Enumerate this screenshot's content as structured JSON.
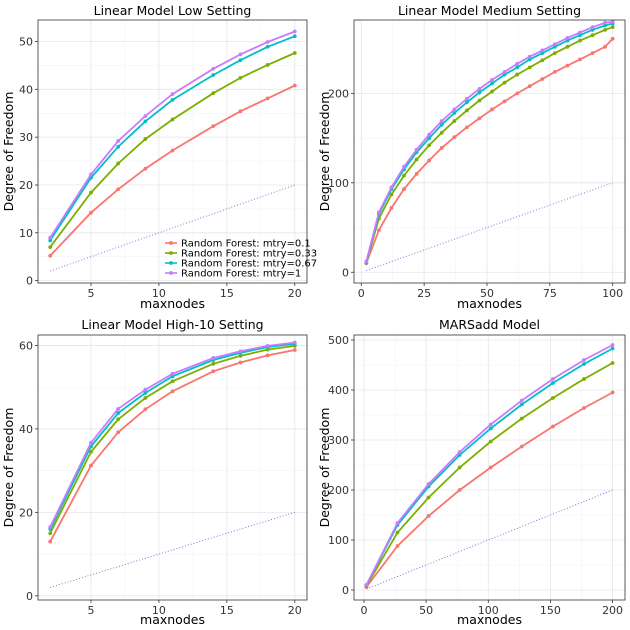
{
  "series_names": [
    "Random Forest: mtry=0.1",
    "Random Forest: mtry=0.33",
    "Random Forest: mtry=0.67",
    "Random Forest: mtry=1"
  ],
  "series_colors": [
    "#F8766D",
    "#7CAE00",
    "#00BFC4",
    "#C77CFF"
  ],
  "reference_line_color": "#6A6AD9",
  "legend_placement": "bottom-right of first panel",
  "chart_data": [
    {
      "type": "line",
      "title": "Linear Model Low Setting",
      "xlabel": "maxnodes",
      "ylabel": "Degree of Freedom",
      "xlim": [
        1.1,
        20.9
      ],
      "ylim": [
        -0.5,
        54.5
      ],
      "xticks": [
        5,
        10,
        15,
        20
      ],
      "yticks": [
        0,
        10,
        20,
        30,
        40,
        50
      ],
      "grid": true,
      "legend": true,
      "x": [
        2,
        5,
        7,
        9,
        11,
        14,
        16,
        18,
        20
      ],
      "series": [
        {
          "name": "Random Forest: mtry=0.1",
          "values": [
            5.2,
            14.2,
            19.1,
            23.4,
            27.2,
            32.3,
            35.4,
            38.1,
            40.8
          ]
        },
        {
          "name": "Random Forest: mtry=0.33",
          "values": [
            7,
            18.4,
            24.5,
            29.6,
            33.7,
            39.2,
            42.4,
            45.1,
            47.6
          ]
        },
        {
          "name": "Random Forest: mtry=0.67",
          "values": [
            8.4,
            21.5,
            28,
            33.3,
            37.8,
            43,
            46.1,
            48.9,
            51.1
          ]
        },
        {
          "name": "Random Forest: mtry=1",
          "values": [
            9,
            22.2,
            29.2,
            34.4,
            39,
            44.3,
            47.3,
            49.9,
            52.1
          ]
        }
      ],
      "reference": {
        "x": [
          2,
          20
        ],
        "values": [
          2,
          20
        ]
      }
    },
    {
      "type": "line",
      "title": "Linear Model Medium Setting",
      "xlabel": "maxnodes",
      "ylabel": "Degree of Freedom",
      "xlim": [
        -2.9,
        104.9
      ],
      "ylim": [
        -12,
        282
      ],
      "xticks": [
        0,
        25,
        50,
        75,
        100
      ],
      "yticks": [
        0,
        100,
        200
      ],
      "grid": true,
      "legend": false,
      "x": [
        2,
        7,
        12,
        17,
        22,
        27,
        32,
        37,
        42,
        47,
        52,
        57,
        62,
        67,
        72,
        77,
        82,
        87,
        92,
        97,
        100
      ],
      "series": [
        {
          "name": "Random Forest: mtry=0.1",
          "values": [
            10,
            47,
            72,
            93,
            110,
            125,
            139,
            151,
            162,
            172,
            182,
            191,
            200,
            208,
            216,
            224,
            231,
            238,
            245,
            252,
            261
          ]
        },
        {
          "name": "Random Forest: mtry=0.33",
          "values": [
            11,
            60,
            87,
            108,
            126,
            142,
            156,
            169,
            181,
            192,
            202,
            212,
            221,
            229,
            237,
            245,
            252,
            259,
            265,
            271,
            274
          ]
        },
        {
          "name": "Random Forest: mtry=0.67",
          "values": [
            11,
            65,
            93,
            115,
            134,
            150,
            165,
            178,
            190,
            201,
            211,
            221,
            229,
            238,
            245,
            252,
            259,
            265,
            271,
            276,
            278
          ]
        },
        {
          "name": "Random Forest: mtry=1",
          "values": [
            12,
            67,
            95,
            118,
            137,
            154,
            169,
            182,
            194,
            205,
            215,
            224,
            233,
            241,
            248,
            255,
            262,
            268,
            274,
            279,
            280
          ]
        }
      ],
      "reference": {
        "x": [
          2,
          100
        ],
        "values": [
          2,
          100
        ]
      }
    },
    {
      "type": "line",
      "title": "Linear Model High-10 Setting",
      "xlabel": "maxnodes",
      "ylabel": "Degree of Freedom",
      "xlim": [
        1.1,
        20.9
      ],
      "ylim": [
        -1,
        62.5
      ],
      "xticks": [
        5,
        10,
        15,
        20
      ],
      "yticks": [
        0,
        20,
        40,
        60
      ],
      "grid": true,
      "legend": false,
      "x": [
        2,
        5,
        7,
        9,
        11,
        14,
        16,
        18,
        20
      ],
      "series": [
        {
          "name": "Random Forest: mtry=0.1",
          "values": [
            13,
            31.2,
            39.2,
            44.7,
            49,
            53.8,
            55.9,
            57.6,
            58.9
          ]
        },
        {
          "name": "Random Forest: mtry=0.33",
          "values": [
            15,
            34.5,
            42.3,
            47.4,
            51.4,
            55.6,
            57.5,
            59,
            59.9
          ]
        },
        {
          "name": "Random Forest: mtry=0.67",
          "values": [
            16,
            35.8,
            43.8,
            48.6,
            52.6,
            56.5,
            58.2,
            59.6,
            60.4
          ]
        },
        {
          "name": "Random Forest: mtry=1",
          "values": [
            16.5,
            36.7,
            44.8,
            49.4,
            53.2,
            57,
            58.6,
            59.9,
            60.7
          ]
        }
      ],
      "reference": {
        "x": [
          2,
          20
        ],
        "values": [
          2,
          20
        ]
      }
    },
    {
      "type": "line",
      "title": "MARSadd Model",
      "xlabel": "maxnodes",
      "ylabel": "Degree of Freedom",
      "xlim": [
        -8,
        210
      ],
      "ylim": [
        -20,
        510
      ],
      "xticks": [
        0,
        50,
        100,
        150,
        200
      ],
      "yticks": [
        0,
        100,
        200,
        300,
        400,
        500
      ],
      "grid": true,
      "legend": false,
      "x": [
        2,
        27,
        52,
        77,
        102,
        127,
        152,
        177,
        200
      ],
      "series": [
        {
          "name": "Random Forest: mtry=0.1",
          "values": [
            6,
            88,
            148,
            200,
            245,
            287,
            327,
            364,
            395
          ]
        },
        {
          "name": "Random Forest: mtry=0.33",
          "values": [
            8,
            115,
            185,
            245,
            297,
            343,
            384,
            422,
            454
          ]
        },
        {
          "name": "Random Forest: mtry=0.67",
          "values": [
            10,
            130,
            207,
            270,
            323,
            371,
            414,
            452,
            483
          ]
        },
        {
          "name": "Random Forest: mtry=1",
          "values": [
            10,
            134,
            212,
            276,
            331,
            379,
            422,
            460,
            490
          ]
        }
      ],
      "reference": {
        "x": [
          2,
          200
        ],
        "values": [
          2,
          200
        ]
      }
    }
  ]
}
